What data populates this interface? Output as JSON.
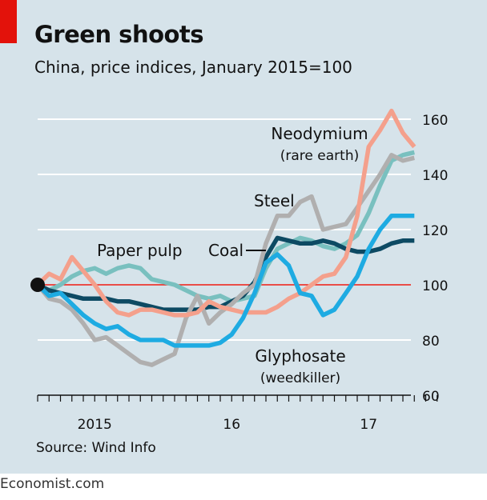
{
  "header": {
    "title": "Green shoots",
    "subtitle": "China, price indices, January 2015=100"
  },
  "footer": {
    "source": "Source: Wind Info",
    "brand": "Economist.com"
  },
  "colors": {
    "background": "#d6e3ea",
    "accent_red": "#e3120b",
    "gridline": "#ffffff",
    "baseline": "#e3120b"
  },
  "chart_data": {
    "type": "line",
    "title": "Green shoots",
    "subtitle": "China, price indices, January 2015=100",
    "y_ticks": [
      60,
      80,
      100,
      120,
      140,
      160
    ],
    "ylim": [
      60,
      165
    ],
    "x_labels": [
      {
        "label": "2015",
        "x": "2015-06"
      },
      {
        "label": "16",
        "x": "2016-06"
      },
      {
        "label": "17",
        "x": "2017-06"
      }
    ],
    "x_range": [
      "2015-01",
      "2017-12"
    ],
    "grid": true,
    "reference_line": 100,
    "series": [
      {
        "name": "Paper pulp",
        "color": "#79c0bf",
        "x": [
          "2015-01",
          "2015-02",
          "2015-03",
          "2015-04",
          "2015-05",
          "2015-06",
          "2015-07",
          "2015-08",
          "2015-09",
          "2015-10",
          "2015-11",
          "2015-12",
          "2016-01",
          "2016-02",
          "2016-03",
          "2016-04",
          "2016-05",
          "2016-06",
          "2016-07",
          "2016-08",
          "2016-09",
          "2016-10",
          "2016-11",
          "2016-12",
          "2017-01",
          "2017-02",
          "2017-03",
          "2017-04",
          "2017-05",
          "2017-06",
          "2017-07",
          "2017-08",
          "2017-09",
          "2017-10"
        ],
        "y": [
          100,
          98,
          100,
          103,
          105,
          106,
          104,
          106,
          107,
          106,
          102,
          101,
          100,
          98,
          96,
          95,
          96,
          94,
          95,
          96,
          106,
          113,
          115,
          117,
          116,
          114,
          113,
          115,
          118,
          126,
          136,
          145,
          147,
          148
        ]
      },
      {
        "name": "Coal",
        "color": "#0d4a63",
        "x": [
          "2015-01",
          "2015-02",
          "2015-03",
          "2015-04",
          "2015-05",
          "2015-06",
          "2015-07",
          "2015-08",
          "2015-09",
          "2015-10",
          "2015-11",
          "2015-12",
          "2016-01",
          "2016-02",
          "2016-03",
          "2016-04",
          "2016-05",
          "2016-06",
          "2016-07",
          "2016-08",
          "2016-09",
          "2016-10",
          "2016-11",
          "2016-12",
          "2017-01",
          "2017-02",
          "2017-03",
          "2017-04",
          "2017-05",
          "2017-06",
          "2017-07",
          "2017-08",
          "2017-09",
          "2017-10"
        ],
        "y": [
          100,
          98,
          97,
          96,
          95,
          95,
          95,
          94,
          94,
          93,
          92,
          91,
          91,
          91,
          91,
          92,
          92,
          94,
          96,
          101,
          110,
          117,
          116,
          115,
          115,
          116,
          115,
          113,
          112,
          112,
          113,
          115,
          116,
          116
        ]
      },
      {
        "name": "Steel",
        "color": "#b0afaf",
        "x": [
          "2015-01",
          "2015-02",
          "2015-03",
          "2015-04",
          "2015-05",
          "2015-06",
          "2015-07",
          "2015-08",
          "2015-09",
          "2015-10",
          "2015-11",
          "2015-12",
          "2016-01",
          "2016-02",
          "2016-03",
          "2016-04",
          "2016-05",
          "2016-06",
          "2016-07",
          "2016-08",
          "2016-09",
          "2016-10",
          "2016-11",
          "2016-12",
          "2017-01",
          "2017-02",
          "2017-03",
          "2017-04",
          "2017-05",
          "2017-06",
          "2017-07",
          "2017-08",
          "2017-09",
          "2017-10"
        ],
        "y": [
          100,
          95,
          94,
          91,
          86,
          80,
          81,
          78,
          75,
          72,
          71,
          73,
          75,
          88,
          96,
          86,
          90,
          93,
          97,
          100,
          115,
          125,
          125,
          130,
          132,
          120,
          121,
          122,
          128,
          134,
          140,
          147,
          145,
          146
        ]
      },
      {
        "name": "Neodymium",
        "color": "#f4a08c",
        "x": [
          "2015-01",
          "2015-02",
          "2015-03",
          "2015-04",
          "2015-05",
          "2015-06",
          "2015-07",
          "2015-08",
          "2015-09",
          "2015-10",
          "2015-11",
          "2015-12",
          "2016-01",
          "2016-02",
          "2016-03",
          "2016-04",
          "2016-05",
          "2016-06",
          "2016-07",
          "2016-08",
          "2016-09",
          "2016-10",
          "2016-11",
          "2016-12",
          "2017-01",
          "2017-02",
          "2017-03",
          "2017-04",
          "2017-05",
          "2017-06",
          "2017-07",
          "2017-08",
          "2017-09",
          "2017-10"
        ],
        "y": [
          100,
          104,
          102,
          110,
          105,
          100,
          94,
          90,
          89,
          91,
          91,
          90,
          89,
          89,
          90,
          94,
          92,
          91,
          90,
          90,
          90,
          92,
          95,
          97,
          100,
          103,
          104,
          110,
          125,
          150,
          156,
          163,
          155,
          150
        ]
      },
      {
        "name": "Glyphosate",
        "color": "#1eabe2",
        "x": [
          "2015-01",
          "2015-02",
          "2015-03",
          "2015-04",
          "2015-05",
          "2015-06",
          "2015-07",
          "2015-08",
          "2015-09",
          "2015-10",
          "2015-11",
          "2015-12",
          "2016-01",
          "2016-02",
          "2016-03",
          "2016-04",
          "2016-05",
          "2016-06",
          "2016-07",
          "2016-08",
          "2016-09",
          "2016-10",
          "2016-11",
          "2016-12",
          "2017-01",
          "2017-02",
          "2017-03",
          "2017-04",
          "2017-05",
          "2017-06",
          "2017-07",
          "2017-08",
          "2017-09",
          "2017-10"
        ],
        "y": [
          100,
          96,
          97,
          93,
          89,
          86,
          84,
          85,
          82,
          80,
          80,
          80,
          78,
          78,
          78,
          78,
          79,
          82,
          88,
          97,
          108,
          111,
          107,
          97,
          96,
          89,
          91,
          97,
          103,
          113,
          120,
          125,
          125,
          125
        ]
      }
    ],
    "annotations": [
      {
        "series": "Neodymium",
        "line1": "Neodymium",
        "line2": "(rare earth)"
      },
      {
        "series": "Steel",
        "line1": "Steel"
      },
      {
        "series": "Paper pulp",
        "line1": "Paper pulp"
      },
      {
        "series": "Coal",
        "line1": "Coal"
      },
      {
        "series": "Glyphosate",
        "line1": "Glyphosate",
        "line2": "(weedkiller)"
      }
    ]
  }
}
